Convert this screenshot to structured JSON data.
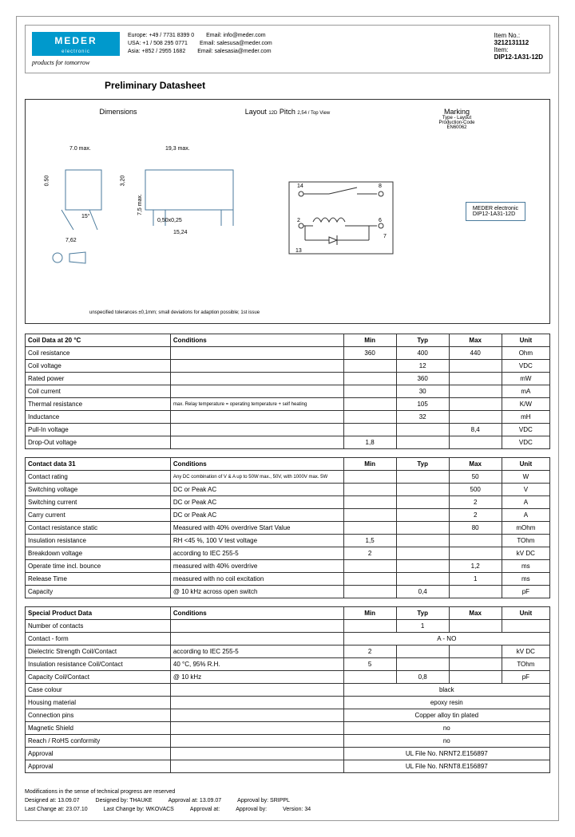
{
  "header": {
    "logo_text": "MEDER",
    "logo_sub": "electronic",
    "tagline": "products for tomorrow",
    "contacts": [
      {
        "region": "Europe:",
        "phone": "+49 / 7731 8399 0",
        "email_label": "Email:",
        "email": "info@meder.com"
      },
      {
        "region": "USA:",
        "phone": "+1 / 508 295 0771",
        "email_label": "Email:",
        "email": "salesusa@meder.com"
      },
      {
        "region": "Asia:",
        "phone": "+852 / 2955 1682",
        "email_label": "Email:",
        "email": "salesasia@meder.com"
      }
    ],
    "item_no_label": "Item No.:",
    "item_no": "3212131112",
    "item_label": "Item:",
    "item": "DIP12-1A31-12D"
  },
  "title": "Preliminary Datasheet",
  "diagram": {
    "dimensions_title": "Dimensions",
    "layout_title": "Layout",
    "layout_sub": "12D",
    "pitch_label": "Pitch",
    "pitch_value": "2,54 / Top View",
    "marking_title": "Marking",
    "marking_sub1": "Type - Layout",
    "marking_sub2": "Production-Code",
    "marking_sub3": "EN60062",
    "marking_box_line1": "MEDER electronic",
    "marking_box_line2": "DIP12-1A31-12D",
    "dim_70": "7.0 max.",
    "dim_193": "19,3 max.",
    "dim_050": "0.50",
    "dim_320": "3,20",
    "dim_15": "15°",
    "dim_762": "7,62",
    "dim_75": "7,5 max.",
    "dim_05025": "0,50x0,25",
    "dim_1524": "15,24",
    "note": "unspecified tolerances ±0,1mm; small deviations for adaption possible; 1st issue",
    "pins": [
      "2",
      "6",
      "7",
      "8",
      "13",
      "14"
    ]
  },
  "tables": {
    "coil": {
      "title": "Coil Data at 20 °C",
      "cond_header": "Conditions",
      "min_header": "Min",
      "typ_header": "Typ",
      "max_header": "Max",
      "unit_header": "Unit",
      "rows": [
        {
          "label": "Coil resistance",
          "cond": "",
          "min": "360",
          "typ": "400",
          "max": "440",
          "unit": "Ohm"
        },
        {
          "label": "Coil voltage",
          "cond": "",
          "min": "",
          "typ": "12",
          "max": "",
          "unit": "VDC"
        },
        {
          "label": "Rated power",
          "cond": "",
          "min": "",
          "typ": "360",
          "max": "",
          "unit": "mW"
        },
        {
          "label": "Coil current",
          "cond": "",
          "min": "",
          "typ": "30",
          "max": "",
          "unit": "mA"
        },
        {
          "label": "Thermal resistance",
          "cond": "max. Relay temperature = operating temperature + self heating",
          "min": "",
          "typ": "105",
          "max": "",
          "unit": "K/W"
        },
        {
          "label": "Inductance",
          "cond": "",
          "min": "",
          "typ": "32",
          "max": "",
          "unit": "mH"
        },
        {
          "label": "Pull-In voltage",
          "cond": "",
          "min": "",
          "typ": "",
          "max": "8,4",
          "unit": "VDC"
        },
        {
          "label": "Drop-Out voltage",
          "cond": "",
          "min": "1,8",
          "typ": "",
          "max": "",
          "unit": "VDC"
        }
      ]
    },
    "contact": {
      "title": "Contact data  31",
      "rows": [
        {
          "label": "Contact rating",
          "cond": "Any DC combination of V & A up to 50W max., 50V, with 1000V max. 5W",
          "min": "",
          "typ": "",
          "max": "50",
          "unit": "W"
        },
        {
          "label": "Switching voltage",
          "cond": "DC or Peak AC",
          "min": "",
          "typ": "",
          "max": "500",
          "unit": "V"
        },
        {
          "label": "Switching current",
          "cond": "DC or Peak AC",
          "min": "",
          "typ": "",
          "max": "2",
          "unit": "A"
        },
        {
          "label": "Carry current",
          "cond": "DC or Peak AC",
          "min": "",
          "typ": "",
          "max": "2",
          "unit": "A"
        },
        {
          "label": "Contact resistance static",
          "cond": "Measured with 40% overdrive Start Value",
          "min": "",
          "typ": "",
          "max": "80",
          "unit": "mOhm"
        },
        {
          "label": "Insulation resistance",
          "cond": "RH <45 %, 100 V test voltage",
          "min": "1,5",
          "typ": "",
          "max": "",
          "unit": "TOhm"
        },
        {
          "label": "Breakdown voltage",
          "cond": "according to IEC 255-5",
          "min": "2",
          "typ": "",
          "max": "",
          "unit": "kV DC"
        },
        {
          "label": "Operate time incl. bounce",
          "cond": "measured with 40% overdrive",
          "min": "",
          "typ": "",
          "max": "1,2",
          "unit": "ms"
        },
        {
          "label": "Release Time",
          "cond": "measured with no coil excitation",
          "min": "",
          "typ": "",
          "max": "1",
          "unit": "ms"
        },
        {
          "label": "Capacity",
          "cond": "@ 10 kHz across open switch",
          "min": "",
          "typ": "0,4",
          "max": "",
          "unit": "pF"
        }
      ]
    },
    "special": {
      "title": "Special Product Data",
      "rows": [
        {
          "label": "Number of contacts",
          "cond": "",
          "min": "",
          "typ": "1",
          "max": "",
          "unit": "",
          "span": false
        },
        {
          "label": "Contact - form",
          "cond": "",
          "val": "A - NO",
          "span": true
        },
        {
          "label": "Dielectric Strength Coil/Contact",
          "cond": "according to IEC 255-5",
          "min": "2",
          "typ": "",
          "max": "",
          "unit": "kV DC",
          "span": false
        },
        {
          "label": "Insulation resistance Coil/Contact",
          "cond": "40 °C, 95% R.H.",
          "min": "5",
          "typ": "",
          "max": "",
          "unit": "TOhm",
          "span": false
        },
        {
          "label": "Capacity Coil/Contact",
          "cond": "@ 10 kHz",
          "min": "",
          "typ": "0,8",
          "max": "",
          "unit": "pF",
          "span": false
        },
        {
          "label": "Case colour",
          "cond": "",
          "val": "black",
          "span": true
        },
        {
          "label": "Housing material",
          "cond": "",
          "val": "epoxy resin",
          "span": true
        },
        {
          "label": "Connection pins",
          "cond": "",
          "val": "Copper alloy tin plated",
          "span": true
        },
        {
          "label": "Magnetic Shield",
          "cond": "",
          "val": "no",
          "span": true
        },
        {
          "label": "Reach / RoHS conformity",
          "cond": "",
          "val": "no",
          "span": true
        },
        {
          "label": "Approval",
          "cond": "",
          "val": "UL File No. NRNT2.E156897",
          "span": true
        },
        {
          "label": "Approval",
          "cond": "",
          "val": "UL File No. NRNT8.E156897",
          "span": true
        }
      ]
    }
  },
  "footer": {
    "note": "Modifications in the sense of technical progress are reserved",
    "designed_at_label": "Designed at:",
    "designed_at": "13.09.07",
    "designed_by_label": "Designed by:",
    "designed_by": "THAUKE",
    "approval_at_label": "Approval at:",
    "approval_at": "13.09.07",
    "approval_by_label": "Approval by:",
    "approval_by": "SRIPPL",
    "last_change_at_label": "Last Change at:",
    "last_change_at": "23.07.10",
    "last_change_by_label": "Last Change by:",
    "last_change_by": "WKOVACS",
    "approval_at2_label": "Approval at:",
    "approval_by2_label": "Approval by:",
    "version_label": "Version:",
    "version": "34"
  }
}
